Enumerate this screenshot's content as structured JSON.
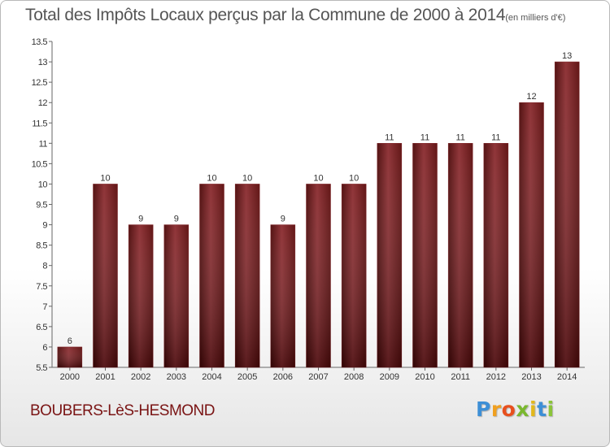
{
  "title": "Total des Impôts Locaux perçus par la Commune de 2000 à 2014",
  "title_unit": "(en milliers d'€)",
  "commune": "BOUBERS-LèS-HESMOND",
  "logo": {
    "letters": [
      "P",
      "r",
      "o",
      "x",
      "i",
      "t",
      "i"
    ],
    "colors": [
      "#3d8fd6",
      "#f0a020",
      "#e8501e",
      "#7ab82e",
      "#e2b81e",
      "#3d8fd6",
      "#8bc43a"
    ]
  },
  "chart_data": {
    "type": "bar",
    "categories": [
      "2000",
      "2001",
      "2002",
      "2003",
      "2004",
      "2005",
      "2006",
      "2007",
      "2008",
      "2009",
      "2010",
      "2011",
      "2012",
      "2013",
      "2014"
    ],
    "values": [
      6,
      10,
      9,
      9,
      10,
      10,
      9,
      10,
      10,
      11,
      11,
      11,
      11,
      12,
      13
    ],
    "data_labels": [
      "6",
      "10",
      "9",
      "9",
      "10",
      "10",
      "9",
      "10",
      "10",
      "11",
      "11",
      "11",
      "11",
      "12",
      "13"
    ],
    "ylim": [
      5.5,
      13.5
    ],
    "yticks": [
      "5.5",
      "6",
      "6.5",
      "7",
      "7.5",
      "8",
      "8.5",
      "9",
      "9.5",
      "10",
      "10.5",
      "11",
      "11.5",
      "12",
      "12.5",
      "13",
      "13.5"
    ],
    "xlabel": "",
    "ylabel": "",
    "bar_color": "#7a1a1e",
    "grid": false,
    "legend": "none"
  }
}
